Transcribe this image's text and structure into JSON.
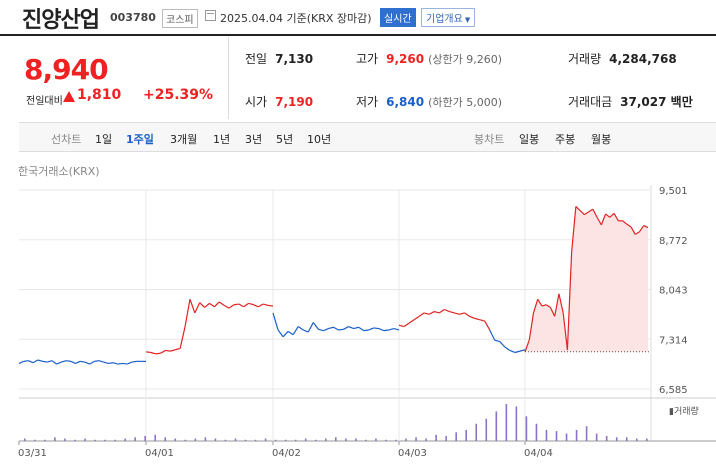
{
  "header": {
    "name": "진양산업",
    "code": "003780",
    "market": "코스피",
    "date": "2025.04.04 기준(KRX 장마감)",
    "realtime": "실시간",
    "company_info": "기업개요"
  },
  "quote": {
    "price": "8,940",
    "compare_label": "전일대비",
    "change": "1,810",
    "change_pct": "+25.39%"
  },
  "stats": {
    "prev_label": "전일",
    "prev": "7,130",
    "high_label": "고가",
    "high": "9,260",
    "upper_limit": "(상한가 9,260)",
    "volume_label": "거래량",
    "volume": "4,284,768",
    "open_label": "시가",
    "open": "7,190",
    "low_label": "저가",
    "low": "6,840",
    "lower_limit": "(하한가 5,000)",
    "amount_label": "거래대금",
    "amount": "37,027 백만"
  },
  "tabs": {
    "line_label": "선차트",
    "periods": [
      "1일",
      "1주일",
      "3개월",
      "1년",
      "3년",
      "5년",
      "10년"
    ],
    "active_period": "1주일",
    "candle_label": "봉차트",
    "candles": [
      "일봉",
      "주봉",
      "월봉"
    ]
  },
  "chart_source": "한국거래소(KRX)",
  "volume_label": "거래량",
  "colors": {
    "up": "#e22222",
    "down": "#1a5fc8",
    "fill": "#fde4e4",
    "grid": "#e8e8e8"
  },
  "chart_data": {
    "type": "line",
    "x_ticks": [
      "03/31",
      "04/01",
      "04/02",
      "04/03",
      "04/04"
    ],
    "y_ticks": [
      9501,
      8772,
      8043,
      7314,
      6585
    ],
    "ylim": [
      6585,
      9501
    ],
    "prev_close": 7130,
    "series": [
      {
        "values": [
          6960,
          6990,
          7000,
          6970,
          7010,
          6990,
          6980,
          7000,
          6950,
          6980,
          7000,
          6990,
          6960,
          6990,
          6980,
          6950,
          6990,
          7000,
          6980,
          6960,
          6970,
          6950,
          6960,
          6950,
          6980,
          6990,
          6990,
          6990
        ]
      },
      {
        "values": [
          7130,
          7120,
          7100,
          7110,
          7150,
          7140,
          7160,
          7180,
          7500,
          7900,
          7700,
          7850,
          7780,
          7840,
          7790,
          7860,
          7810,
          7770,
          7820,
          7830,
          7790,
          7840,
          7820,
          7790,
          7830,
          7810,
          7800
        ]
      },
      {
        "values": [
          7700,
          7450,
          7350,
          7430,
          7380,
          7500,
          7450,
          7420,
          7560,
          7460,
          7440,
          7470,
          7490,
          7450,
          7460,
          7500,
          7470,
          7490,
          7440,
          7450,
          7480,
          7470,
          7440,
          7450,
          7470,
          7450
        ]
      },
      {
        "values": [
          7520,
          7500,
          7550,
          7600,
          7650,
          7700,
          7680,
          7720,
          7700,
          7750,
          7720,
          7700,
          7680,
          7700,
          7650,
          7620,
          7600,
          7580,
          7450,
          7300,
          7280,
          7200,
          7150,
          7120,
          7140,
          7160
        ]
      },
      {
        "values": [
          7130,
          7300,
          7700,
          7900,
          7800,
          7820,
          7780,
          7650,
          7980,
          7700,
          7160,
          8600,
          9260,
          9200,
          9140,
          9180,
          9220,
          9100,
          8990,
          9150,
          9100,
          9160,
          9050,
          9050,
          9000,
          8960,
          8850,
          8890,
          8980,
          8950
        ]
      }
    ],
    "volume": [
      2,
      1,
      1,
      3,
      2,
      1,
      2,
      1,
      1,
      1,
      2,
      3,
      4,
      5,
      3,
      2,
      1,
      2,
      3,
      2,
      1,
      2,
      1,
      1,
      2,
      1,
      1,
      1,
      2,
      1,
      2,
      3,
      2,
      2,
      1,
      2,
      1,
      1,
      2,
      3,
      2,
      5,
      4,
      7,
      9,
      14,
      18,
      24,
      30,
      28,
      20,
      14,
      9,
      8,
      6,
      9,
      12,
      6,
      4,
      3,
      3,
      2,
      2
    ]
  }
}
